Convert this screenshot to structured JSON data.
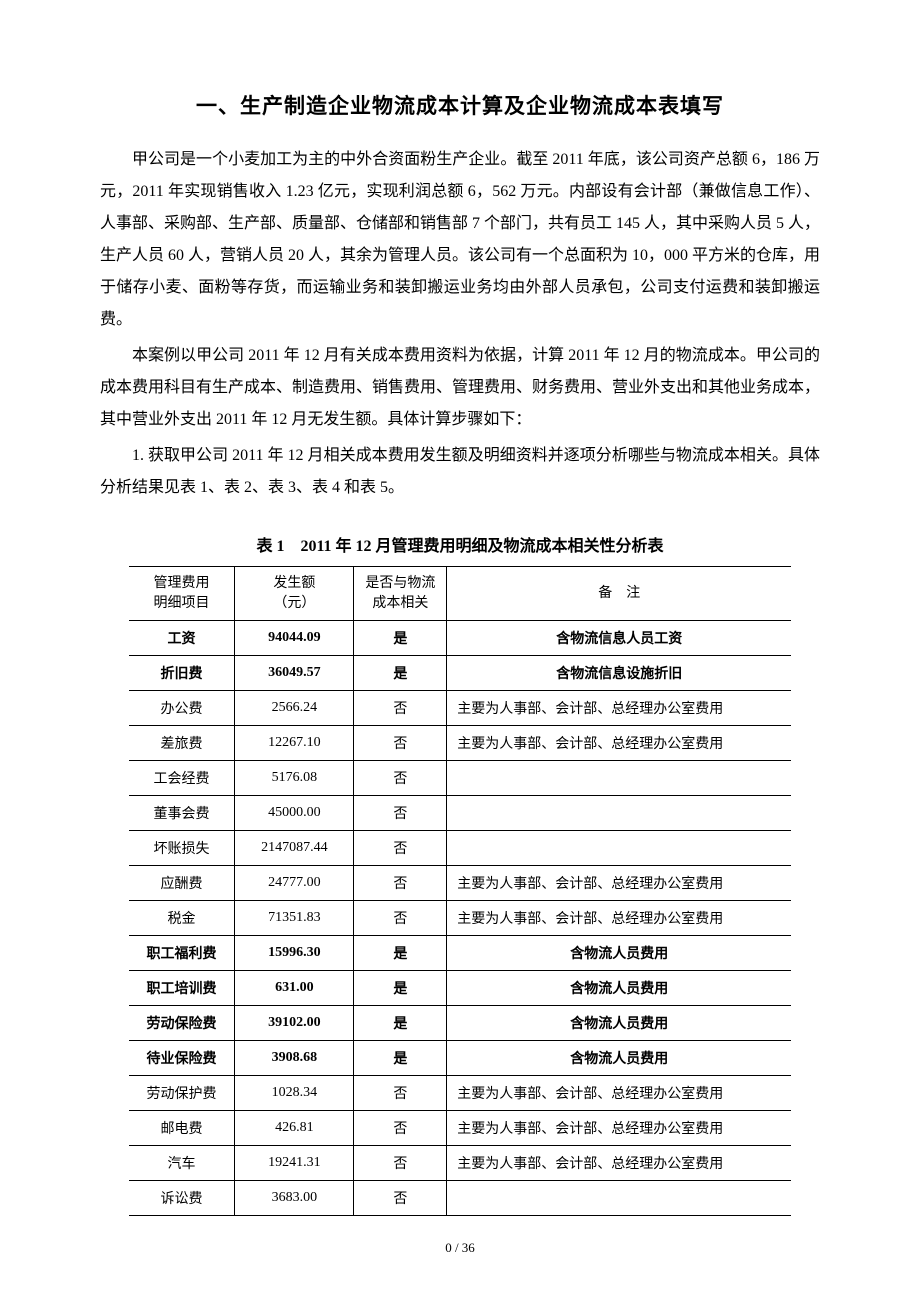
{
  "title": "一、生产制造企业物流成本计算及企业物流成本表填写",
  "paragraphs": {
    "p1": "甲公司是一个小麦加工为主的中外合资面粉生产企业。截至 2011 年底，该公司资产总额 6，186 万元，2011 年实现销售收入 1.23 亿元，实现利润总额 6，562 万元。内部设有会计部（兼做信息工作）、人事部、采购部、生产部、质量部、仓储部和销售部 7 个部门，共有员工 145 人，其中采购人员 5 人，生产人员 60 人，营销人员 20 人，其余为管理人员。该公司有一个总面积为 10，000 平方米的仓库，用于储存小麦、面粉等存货，而运输业务和装卸搬运业务均由外部人员承包，公司支付运费和装卸搬运费。",
    "p2": "本案例以甲公司 2011 年 12 月有关成本费用资料为依据，计算 2011 年 12 月的物流成本。甲公司的成本费用科目有生产成本、制造费用、销售费用、管理费用、财务费用、营业外支出和其他业务成本，其中营业外支出 2011 年 12 月无发生额。具体计算步骤如下：",
    "p3": "1. 获取甲公司 2011 年 12 月相关成本费用发生额及明细资料并逐项分析哪些与物流成本相关。具体分析结果见表 1、表 2、表 3、表 4 和表 5。"
  },
  "table1": {
    "title": "表 1　2011 年 12 月管理费用明细及物流成本相关性分析表",
    "headers": {
      "c1a": "管理费用",
      "c1b": "明细项目",
      "c2a": "发生额",
      "c2b": "（元）",
      "c3a": "是否与物流",
      "c3b": "成本相关",
      "c4": "备　注"
    },
    "rows": [
      {
        "item": "工资",
        "amount": "94044.09",
        "related": "是",
        "note": "含物流信息人员工资",
        "bold": true
      },
      {
        "item": "折旧费",
        "amount": "36049.57",
        "related": "是",
        "note": "含物流信息设施折旧",
        "bold": true
      },
      {
        "item": "办公费",
        "amount": "2566.24",
        "related": "否",
        "note": "主要为人事部、会计部、总经理办公室费用",
        "bold": false
      },
      {
        "item": "差旅费",
        "amount": "12267.10",
        "related": "否",
        "note": "主要为人事部、会计部、总经理办公室费用",
        "bold": false
      },
      {
        "item": "工会经费",
        "amount": "5176.08",
        "related": "否",
        "note": "",
        "bold": false
      },
      {
        "item": "董事会费",
        "amount": "45000.00",
        "related": "否",
        "note": "",
        "bold": false
      },
      {
        "item": "坏账损失",
        "amount": "2147087.44",
        "related": "否",
        "note": "",
        "bold": false
      },
      {
        "item": "应酬费",
        "amount": "24777.00",
        "related": "否",
        "note": "主要为人事部、会计部、总经理办公室费用",
        "bold": false
      },
      {
        "item": "税金",
        "amount": "71351.83",
        "related": "否",
        "note": "主要为人事部、会计部、总经理办公室费用",
        "bold": false
      },
      {
        "item": "职工福利费",
        "amount": "15996.30",
        "related": "是",
        "note": "含物流人员费用",
        "bold": true
      },
      {
        "item": "职工培训费",
        "amount": "631.00",
        "related": "是",
        "note": "含物流人员费用",
        "bold": true
      },
      {
        "item": "劳动保险费",
        "amount": "39102.00",
        "related": "是",
        "note": "含物流人员费用",
        "bold": true
      },
      {
        "item": "待业保险费",
        "amount": "3908.68",
        "related": "是",
        "note": "含物流人员费用",
        "bold": true
      },
      {
        "item": "劳动保护费",
        "amount": "1028.34",
        "related": "否",
        "note": "主要为人事部、会计部、总经理办公室费用",
        "bold": false
      },
      {
        "item": "邮电费",
        "amount": "426.81",
        "related": "否",
        "note": "主要为人事部、会计部、总经理办公室费用",
        "bold": false
      },
      {
        "item": "汽车",
        "amount": "19241.31",
        "related": "否",
        "note": "主要为人事部、会计部、总经理办公室费用",
        "bold": false
      },
      {
        "item": "诉讼费",
        "amount": "3683.00",
        "related": "否",
        "note": "",
        "bold": false
      }
    ]
  },
  "footer": "0 / 36"
}
